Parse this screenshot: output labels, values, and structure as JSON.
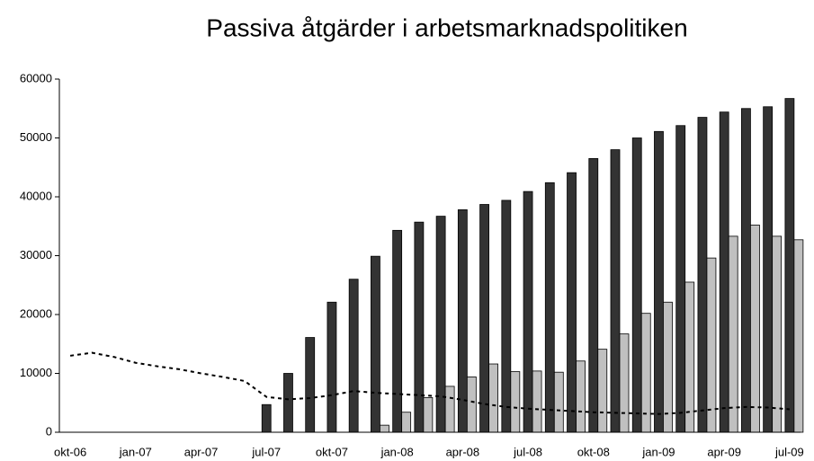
{
  "chart_data": {
    "type": "bar",
    "title": "Passiva åtgärder i arbetsmarknadspolitiken",
    "categories": [
      "okt-06",
      null,
      null,
      "jan-07",
      null,
      null,
      "apr-07",
      null,
      null,
      "jul-07",
      null,
      null,
      "okt-07",
      null,
      null,
      "jan-08",
      null,
      null,
      "apr-08",
      null,
      null,
      "jul-08",
      null,
      null,
      "okt-08",
      null,
      null,
      "jan-09",
      null,
      null,
      "apr-09",
      null,
      null,
      "jul-09"
    ],
    "series": [
      {
        "color": "#333333",
        "values": [
          null,
          null,
          null,
          null,
          null,
          null,
          null,
          null,
          null,
          4700,
          10000,
          16100,
          22100,
          26000,
          29900,
          34300,
          35700,
          36700,
          37800,
          38700,
          39400,
          40900,
          42400,
          44100,
          46500,
          48000,
          50000,
          51100,
          52100,
          53500,
          54400,
          55000,
          55300,
          56700
        ]
      },
      {
        "color": "#c0c0c0",
        "values": [
          null,
          null,
          null,
          null,
          null,
          null,
          null,
          null,
          null,
          null,
          null,
          null,
          null,
          null,
          1200,
          3400,
          5900,
          7800,
          9400,
          11600,
          10300,
          10400,
          10200,
          12100,
          14100,
          16700,
          20200,
          22100,
          25500,
          29600,
          33300,
          35200,
          33300,
          32700
        ]
      },
      {
        "color": "#000000",
        "type": "line",
        "line_style": "dotted",
        "values": [
          13000,
          13500,
          12800,
          11800,
          11200,
          10700,
          10000,
          9400,
          8700,
          6000,
          5600,
          5800,
          6300,
          7000,
          6700,
          6500,
          6300,
          6100,
          5500,
          4800,
          4300,
          4000,
          3800,
          3600,
          3400,
          3300,
          3200,
          3100,
          3300,
          3700,
          4100,
          4300,
          4200,
          3900
        ]
      }
    ],
    "ylim": [
      0,
      60000
    ],
    "yticks": [
      0,
      10000,
      20000,
      30000,
      40000,
      50000,
      60000
    ],
    "grid": false
  }
}
